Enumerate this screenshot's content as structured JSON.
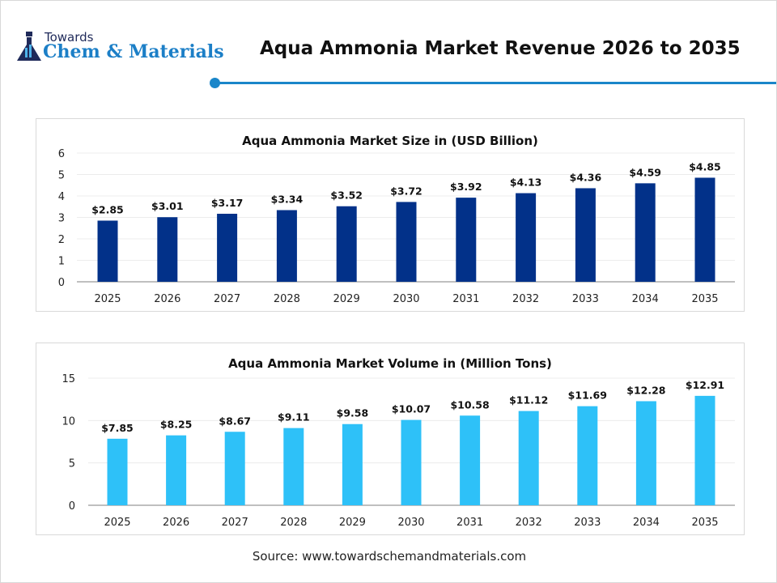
{
  "logo": {
    "line1": "Towards",
    "line2": "Chem & Materials"
  },
  "title": "Aqua Ammonia Market Revenue 2026 to 2035",
  "source": "Source: www.towardschemandmaterials.com",
  "colors": {
    "accent": "#1a86c9",
    "bar1": "#023189",
    "bar2": "#2ec1f8"
  },
  "chart_data": [
    {
      "type": "bar",
      "title": "Aqua Ammonia Market Size in (USD Billion)",
      "categories": [
        "2025",
        "2026",
        "2027",
        "2028",
        "2029",
        "2030",
        "2031",
        "2032",
        "2033",
        "2034",
        "2035"
      ],
      "values": [
        2.85,
        3.01,
        3.17,
        3.34,
        3.52,
        3.72,
        3.92,
        4.13,
        4.36,
        4.59,
        4.85
      ],
      "data_labels": [
        "$2.85",
        "$3.01",
        "$3.17",
        "$3.34",
        "$3.52",
        "$3.72",
        "$3.92",
        "$4.13",
        "$4.36",
        "$4.59",
        "$4.85"
      ],
      "yticks": [
        "0",
        "1",
        "2",
        "3",
        "4",
        "5",
        "6"
      ],
      "ylim": [
        0,
        6
      ],
      "grid": true,
      "color": "#023189"
    },
    {
      "type": "bar",
      "title": "Aqua Ammonia Market Volume in (Million Tons)",
      "categories": [
        "2025",
        "2026",
        "2027",
        "2028",
        "2029",
        "2030",
        "2031",
        "2032",
        "2033",
        "2034",
        "2035"
      ],
      "values": [
        7.85,
        8.25,
        8.67,
        9.11,
        9.58,
        10.07,
        10.58,
        11.12,
        11.69,
        12.28,
        12.91
      ],
      "data_labels": [
        "$7.85",
        "$8.25",
        "$8.67",
        "$9.11",
        "$9.58",
        "$10.07",
        "$10.58",
        "$11.12",
        "$11.69",
        "$12.28",
        "$12.91"
      ],
      "yticks": [
        "0",
        "5",
        "10",
        "15"
      ],
      "ylim": [
        0,
        15
      ],
      "grid": true,
      "color": "#2ec1f8"
    }
  ]
}
